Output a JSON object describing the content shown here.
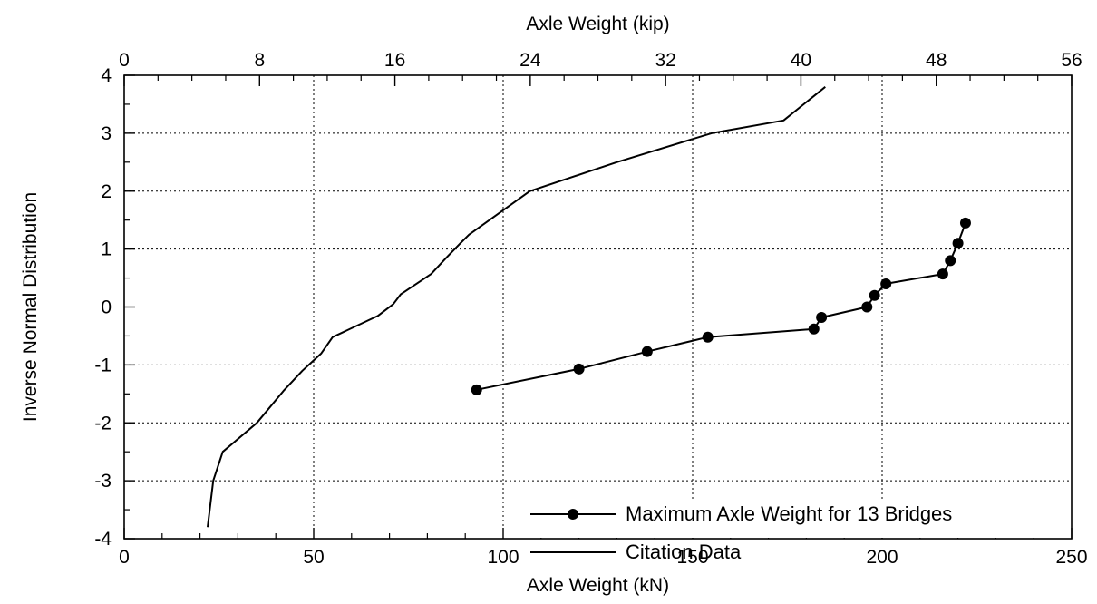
{
  "chart_data": {
    "type": "line",
    "xlabel": "Axle Weight (kN)",
    "x2label": "Axle Weight (kip)",
    "ylabel": "Inverse Normal Distribution",
    "xlim": [
      0,
      250
    ],
    "x2lim": [
      0,
      56
    ],
    "ylim": [
      -4,
      4
    ],
    "x_ticks": [
      0,
      50,
      100,
      150,
      200,
      250
    ],
    "x2_ticks": [
      0,
      8,
      16,
      24,
      32,
      40,
      48,
      56
    ],
    "y_ticks": [
      -4,
      -3,
      -2,
      -1,
      0,
      1,
      2,
      3,
      4
    ],
    "grid": true,
    "legend_position": "bottom-right",
    "series": [
      {
        "name": "Maximum Axle Weight for 13 Bridges",
        "markers": true,
        "color": "#000000",
        "x": [
          93,
          120,
          138,
          154,
          182,
          184,
          196,
          198,
          201,
          216,
          218,
          220,
          222
        ],
        "y": [
          -1.43,
          -1.07,
          -0.77,
          -0.52,
          -0.38,
          -0.18,
          0.0,
          0.2,
          0.4,
          0.57,
          0.8,
          1.1,
          1.45
        ]
      },
      {
        "name": "Citation Data",
        "markers": false,
        "color": "#000000",
        "x": [
          22,
          23.5,
          26,
          35,
          42,
          47,
          52,
          55,
          67,
          71,
          73,
          81,
          85,
          89,
          91,
          107,
          130,
          155,
          174,
          185
        ],
        "y": [
          -3.8,
          -3.0,
          -2.5,
          -2.0,
          -1.45,
          -1.1,
          -0.8,
          -0.52,
          -0.15,
          0.05,
          0.22,
          0.57,
          0.85,
          1.12,
          1.25,
          2.0,
          2.5,
          3.0,
          3.22,
          3.8
        ]
      }
    ]
  }
}
